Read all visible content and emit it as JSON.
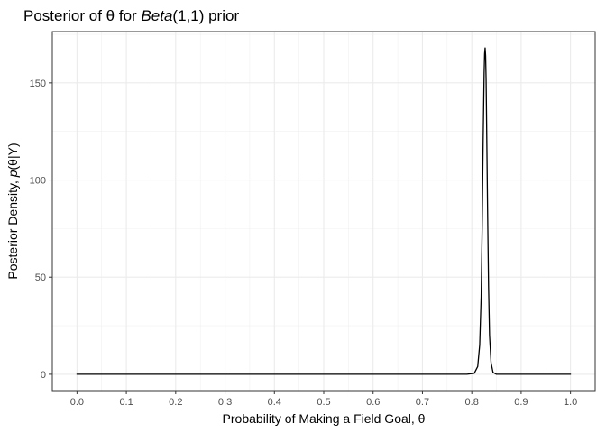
{
  "chart_data": {
    "type": "line",
    "title": {
      "prefix": "Posterior of ",
      "symbol": "θ",
      "middle": " for ",
      "dist": "Beta",
      "params": "(1,1)",
      "suffix": " prior"
    },
    "xlabel": {
      "text": "Probability of Making a Field Goal, ",
      "symbol": "θ"
    },
    "ylabel": {
      "prefix": "Posterior Density, ",
      "func": "p",
      "args": "(θ|Y)"
    },
    "xlim": [
      -0.05,
      1.05
    ],
    "ylim": [
      -8.4,
      176.4
    ],
    "x_ticks": [
      0.0,
      0.1,
      0.2,
      0.3,
      0.4,
      0.5,
      0.6,
      0.7,
      0.8,
      0.9,
      1.0
    ],
    "x_tick_labels": [
      "0.0",
      "0.1",
      "0.2",
      "0.3",
      "0.4",
      "0.5",
      "0.6",
      "0.7",
      "0.8",
      "0.9",
      "1.0"
    ],
    "y_ticks": [
      0,
      50,
      100,
      150
    ],
    "y_tick_labels": [
      "0",
      "50",
      "100",
      "150"
    ],
    "grid": true,
    "legend": "none",
    "series": [
      {
        "color": "#000000",
        "x": [
          0.0,
          0.1,
          0.2,
          0.3,
          0.4,
          0.5,
          0.6,
          0.7,
          0.79,
          0.805,
          0.812,
          0.816,
          0.819,
          0.821,
          0.823,
          0.825,
          0.826,
          0.827,
          0.828,
          0.829,
          0.83,
          0.832,
          0.834,
          0.836,
          0.839,
          0.843,
          0.85,
          0.86,
          0.9,
          1.0
        ],
        "y": [
          0,
          0,
          0,
          0,
          0,
          0,
          0,
          0,
          0,
          0.5,
          4,
          15,
          40,
          75,
          120,
          155,
          165,
          168,
          164,
          152,
          130,
          85,
          45,
          20,
          6,
          1,
          0,
          0,
          0,
          0
        ]
      }
    ]
  }
}
